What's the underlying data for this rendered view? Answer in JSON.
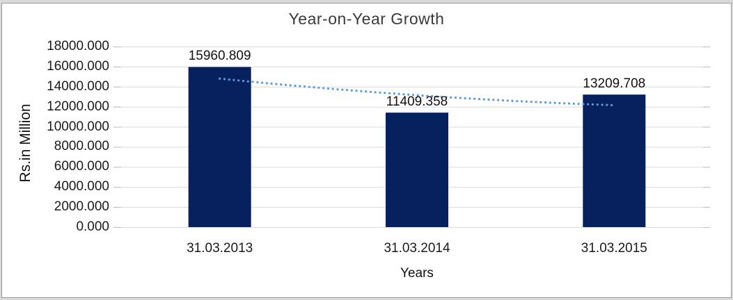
{
  "chart_data": {
    "type": "bar",
    "title": "Year-on-Year Growth",
    "ylabel": "Rs.in Million",
    "xlabel": "Years",
    "categories": [
      "31.03.2013",
      "31.03.2014",
      "31.03.2015"
    ],
    "values": [
      15960.809,
      11409.358,
      13209.708
    ],
    "data_labels": [
      "15960.809",
      "11409.358",
      "13209.708"
    ],
    "y_ticks": [
      "18000.000",
      "16000.000",
      "14000.000",
      "12000.000",
      "10000.000",
      "8000.000",
      "6000.000",
      "4000.000",
      "2000.000",
      "0.000"
    ],
    "ylim": [
      0,
      18000
    ],
    "grid": true,
    "legend": "none",
    "bar_color": "#06215e",
    "gridline_color": "#d9d9d9",
    "tick_stub_color": "#bdbdbd",
    "trendline": {
      "style": "dotted",
      "color": "#5b9bd5",
      "values_at_categories": [
        14800,
        13150,
        12150
      ]
    }
  }
}
